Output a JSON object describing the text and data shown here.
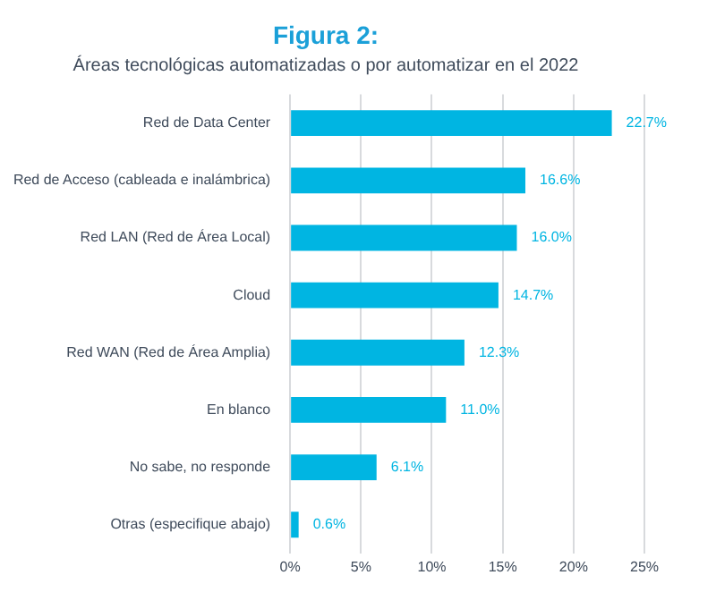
{
  "chart_data": {
    "type": "bar",
    "orientation": "horizontal",
    "title": "Figura 2:",
    "subtitle": "Áreas tecnológicas automatizadas o por automatizar en el 2022",
    "categories": [
      "Red de Data Center",
      "Red de Acceso (cableada e inalámbrica)",
      "Red LAN (Red de Área Local)",
      "Cloud",
      "Red WAN (Red de Área Amplia)",
      "En blanco",
      "No sabe, no responde",
      "Otras (especifique abajo)"
    ],
    "values": [
      22.7,
      16.6,
      16.0,
      14.7,
      12.3,
      11.0,
      6.1,
      0.6
    ],
    "color": "#00b5e2",
    "xlim": [
      0,
      25
    ],
    "xticks": [
      {
        "value": 0,
        "label": "0%"
      },
      {
        "value": 5,
        "label": "5%"
      },
      {
        "value": 10,
        "label": "10%"
      },
      {
        "value": 15,
        "label": "15%"
      },
      {
        "value": 20,
        "label": "20%"
      },
      {
        "value": 25,
        "label": "25%"
      }
    ],
    "value_labels": [
      "22.7%",
      "16.6%",
      "16.0%",
      "14.7%",
      "12.3%",
      "11.0%",
      "6.1%",
      "0.6%"
    ],
    "grid": "x",
    "legend": false
  }
}
